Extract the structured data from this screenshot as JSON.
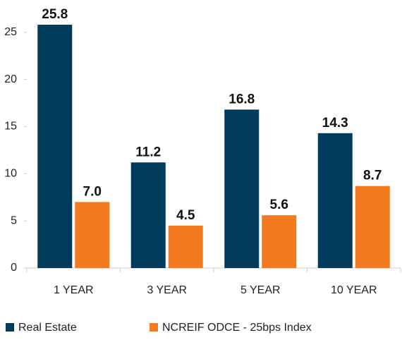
{
  "chart_data": {
    "type": "bar",
    "categories": [
      "1 YEAR",
      "3 YEAR",
      "5 YEAR",
      "10 YEAR"
    ],
    "series": [
      {
        "name": "Real Estate",
        "color": "#003a5d",
        "values": [
          25.8,
          11.2,
          16.8,
          14.3
        ],
        "value_labels": [
          "25.8",
          "11.2",
          "16.8",
          "14.3"
        ]
      },
      {
        "name": "NCREIF ODCE - 25bps Index",
        "color": "#f47a20",
        "values": [
          7,
          4.5,
          5.6,
          8.7
        ],
        "value_labels": [
          "7.0",
          "4.5",
          "5.6",
          "8.7"
        ]
      }
    ],
    "ylim": [
      0,
      27
    ],
    "yticks": [
      0,
      5,
      10,
      15,
      20,
      25
    ],
    "legend": "bottom"
  }
}
